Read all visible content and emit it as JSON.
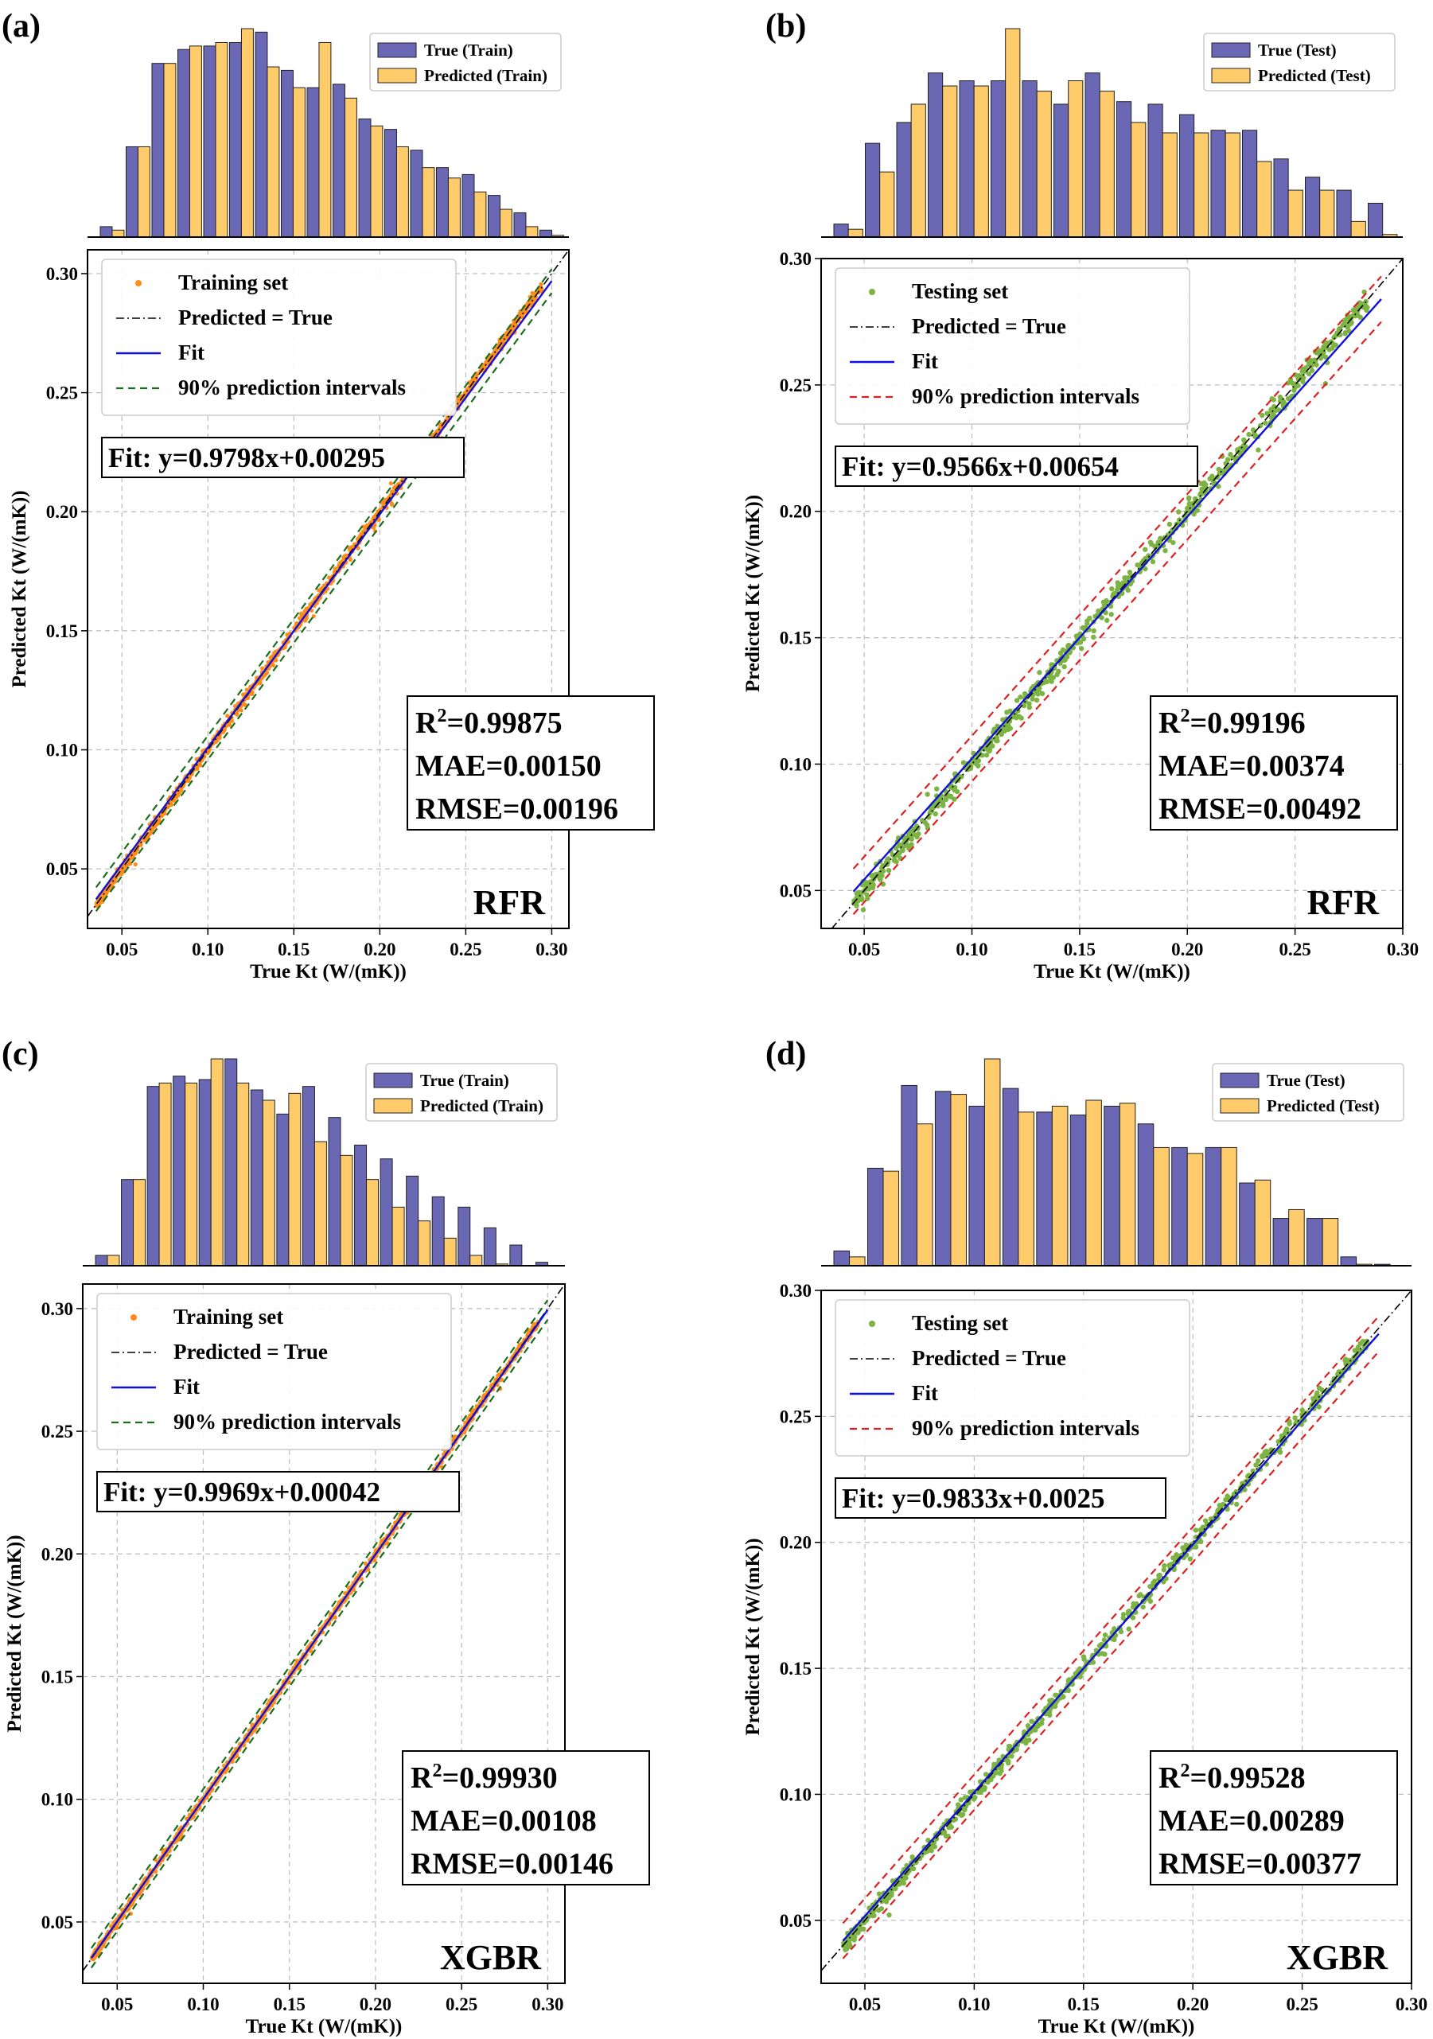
{
  "chart_data": [
    {
      "panel_label": "(a)",
      "type": "scatter",
      "model": "RFR",
      "xlabel": "True Kt (W/(mK))",
      "ylabel": "Predicted Kt (W/(mK))",
      "xlim": [
        0.03,
        0.31
      ],
      "ylim": [
        0.025,
        0.31
      ],
      "xticks": [
        "0.05",
        "0.10",
        "0.15",
        "0.20",
        "0.25",
        "0.30"
      ],
      "yticks": [
        "0.05",
        "0.10",
        "0.15",
        "0.20",
        "0.25",
        "0.30"
      ],
      "grid": true,
      "legend_position": "upper-left",
      "legend": [
        "Training set",
        "Predicted = True",
        "Fit",
        "90% prediction intervals"
      ],
      "fit_text": "Fit: y=0.9798x+0.00295",
      "fit": {
        "slope": 0.9798,
        "intercept": 0.00295
      },
      "interval_halfwidth": 0.005,
      "stats": {
        "r2": "=0.99875",
        "mae": "MAE=0.00150",
        "rmse": "RMSE=0.00196"
      },
      "scatter": {
        "name": "Training set",
        "color": "#ff8c1a",
        "x_range": [
          0.035,
          0.295
        ],
        "scatter": 0.002
      },
      "histogram": {
        "legend": [
          "True (Train)",
          "Predicted (Train)"
        ],
        "true": [
          3,
          26,
          50,
          54,
          55,
          56,
          59,
          48,
          43,
          44,
          34,
          31,
          25,
          20,
          18,
          12,
          7,
          2
        ],
        "predicted": [
          2,
          26,
          50,
          55,
          56,
          60,
          49,
          43,
          56,
          40,
          32,
          26,
          20,
          17,
          13,
          8,
          3,
          0.5
        ]
      }
    },
    {
      "panel_label": "(b)",
      "type": "scatter",
      "model": "RFR",
      "xlabel": "True Kt (W/(mK))",
      "ylabel": "Predicted Kt (W/(mK))",
      "xlim": [
        0.03,
        0.3
      ],
      "ylim": [
        0.035,
        0.3
      ],
      "xticks": [
        "0.05",
        "0.10",
        "0.15",
        "0.20",
        "0.25",
        "0.30"
      ],
      "yticks": [
        "0.05",
        "0.10",
        "0.15",
        "0.20",
        "0.25",
        "0.30"
      ],
      "grid": true,
      "legend_position": "upper-left",
      "legend": [
        "Testing set",
        "Predicted = True",
        "Fit",
        "90% prediction intervals"
      ],
      "fit_text": "Fit: y=0.9566x+0.00654",
      "fit": {
        "slope": 0.9566,
        "intercept": 0.00654
      },
      "interval_halfwidth": 0.009,
      "stats": {
        "r2": "=0.99196",
        "mae": "MAE=0.00374",
        "rmse": "RMSE=0.00492"
      },
      "scatter": {
        "name": "Testing set",
        "color": "#7cb342",
        "x_range": [
          0.045,
          0.285
        ],
        "scatter": 0.004
      },
      "histogram": {
        "legend": [
          "True (Test)",
          "Predicted (Test)"
        ],
        "true": [
          5,
          36,
          44,
          63,
          60,
          60,
          60,
          51,
          63,
          52,
          51,
          47,
          41,
          41,
          30,
          23,
          18,
          13
        ],
        "predicted": [
          3,
          25,
          51,
          58,
          58,
          80,
          56,
          60,
          56,
          44,
          40,
          40,
          40,
          29,
          18,
          18,
          6,
          1
        ]
      }
    },
    {
      "panel_label": "(c)",
      "type": "scatter",
      "model": "XGBR",
      "xlabel": "True Kt (W/(mK))",
      "ylabel": "Predicted Kt (W/(mK))",
      "xlim": [
        0.03,
        0.31
      ],
      "ylim": [
        0.025,
        0.31
      ],
      "xticks": [
        "0.05",
        "0.10",
        "0.15",
        "0.20",
        "0.25",
        "0.30"
      ],
      "yticks": [
        "0.05",
        "0.10",
        "0.15",
        "0.20",
        "0.25",
        "0.30"
      ],
      "grid": true,
      "legend_position": "upper-left",
      "legend": [
        "Training set",
        "Predicted = True",
        "Fit",
        "90% prediction intervals"
      ],
      "fit_text": "Fit: y=0.9969x+0.00042",
      "fit": {
        "slope": 0.9969,
        "intercept": 0.00042
      },
      "interval_halfwidth": 0.004,
      "stats": {
        "r2": "=0.99930",
        "mae": "MAE=0.00108",
        "rmse": "RMSE=0.00146"
      },
      "scatter": {
        "name": "Training set",
        "color": "#ff8c1a",
        "x_range": [
          0.035,
          0.295
        ],
        "scatter": 0.0015
      },
      "histogram": {
        "legend": [
          "True (Train)",
          "Predicted (Train)"
        ],
        "true": [
          3,
          25,
          52,
          55,
          54,
          60,
          51,
          44,
          52,
          43,
          35,
          31,
          26,
          20,
          17,
          11,
          6,
          1
        ],
        "predicted": [
          3,
          25,
          53,
          53,
          60,
          53,
          48,
          50,
          36,
          32,
          25,
          17,
          13,
          8,
          3,
          0.5,
          0,
          0
        ]
      }
    },
    {
      "panel_label": "(d)",
      "type": "scatter",
      "model": "XGBR",
      "xlabel": "True Kt (W/(mK))",
      "ylabel": "Predicted Kt (W/(mK))",
      "xlim": [
        0.03,
        0.3
      ],
      "ylim": [
        0.025,
        0.3
      ],
      "xticks": [
        "0.05",
        "0.10",
        "0.15",
        "0.20",
        "0.25",
        "0.30"
      ],
      "yticks": [
        "0.05",
        "0.10",
        "0.15",
        "0.20",
        "0.25",
        "0.30"
      ],
      "grid": true,
      "legend_position": "upper-left",
      "legend": [
        "Testing set",
        "Predicted = True",
        "Fit",
        "90% prediction intervals"
      ],
      "fit_text": "Fit: y=0.9833x+0.0025",
      "fit": {
        "slope": 0.9833,
        "intercept": 0.0025
      },
      "interval_halfwidth": 0.007,
      "stats": {
        "r2": "=0.99528",
        "mae": "MAE=0.00289",
        "rmse": "RMSE=0.00377"
      },
      "scatter": {
        "name": "Testing set",
        "color": "#7cb342",
        "x_range": [
          0.04,
          0.28
        ],
        "scatter": 0.003
      },
      "histogram": {
        "legend": [
          "True (Test)",
          "Predicted (Test)"
        ],
        "true": [
          5,
          33,
          61,
          59,
          54,
          60,
          52,
          51,
          54,
          48,
          40,
          40,
          28,
          16,
          16,
          3,
          0.5
        ],
        "predicted": [
          3,
          32,
          48,
          58,
          70,
          52,
          54,
          56,
          55,
          40,
          38,
          40,
          29,
          19,
          16,
          0.5
        ]
      }
    }
  ]
}
